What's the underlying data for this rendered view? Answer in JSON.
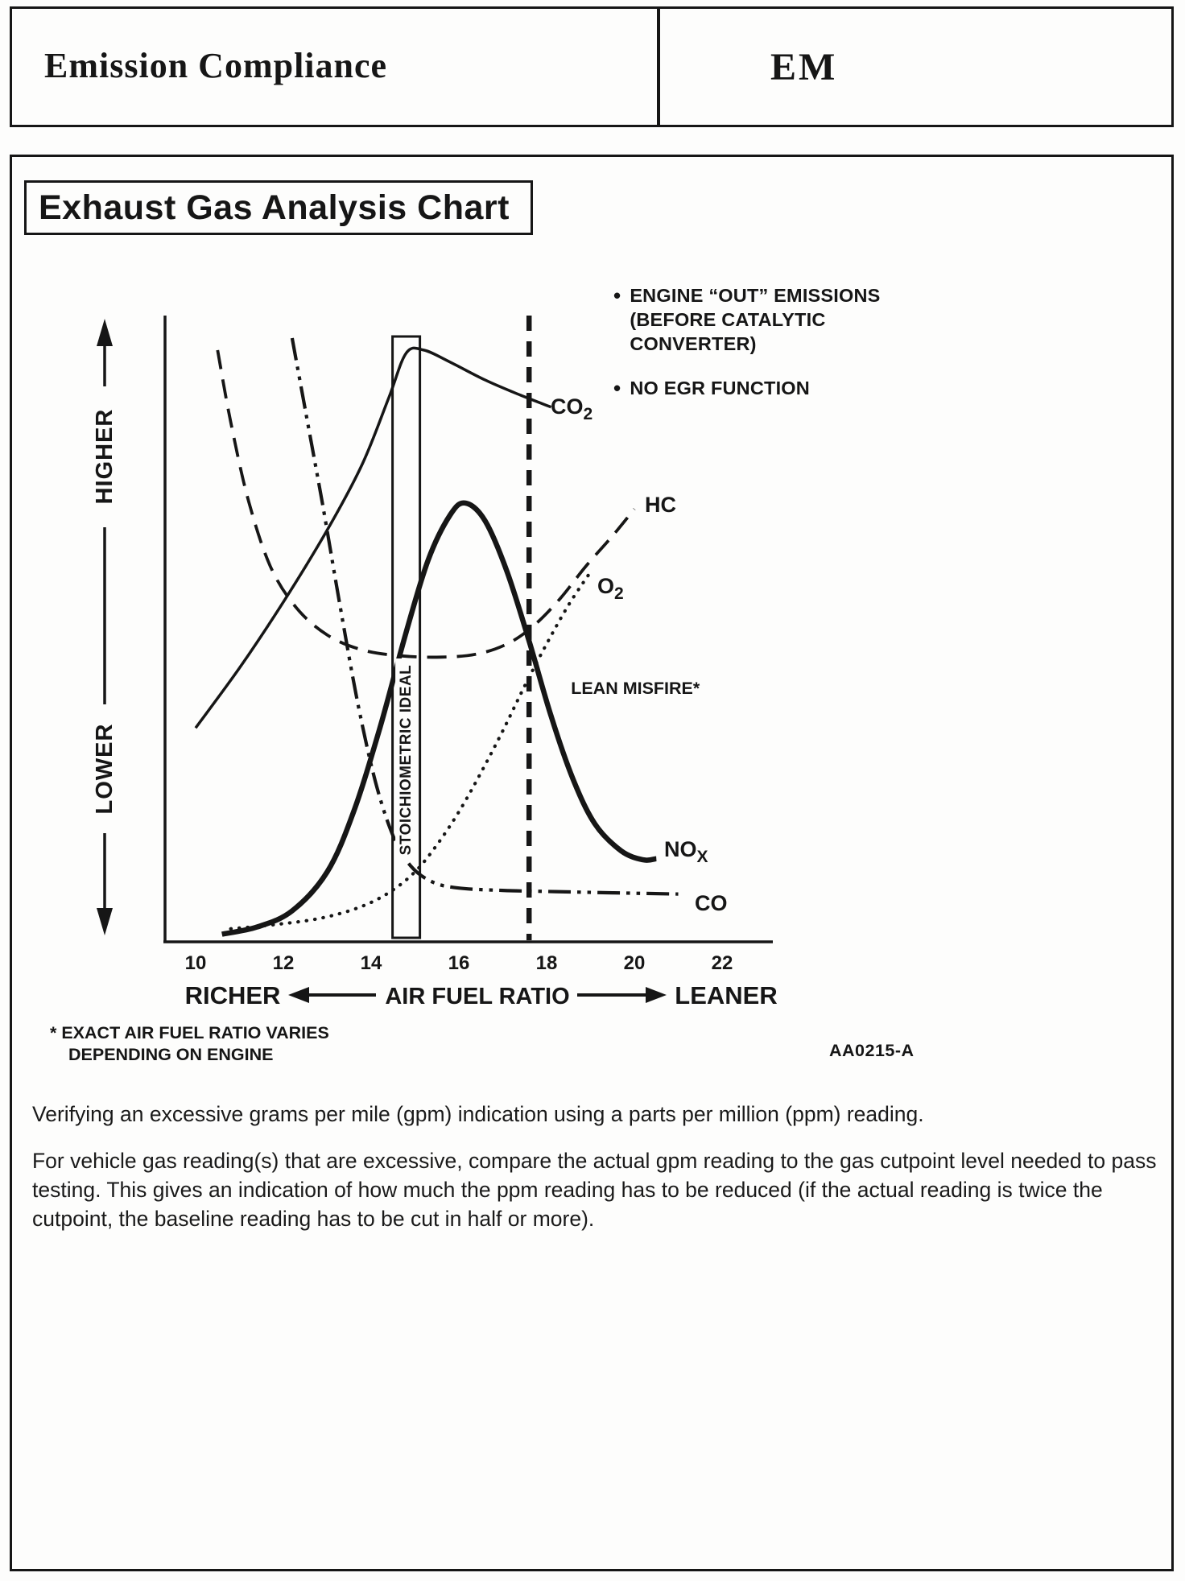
{
  "header": {
    "title": "Emission Compliance",
    "section_code": "EM"
  },
  "figure": {
    "title": "Exhaust Gas Analysis Chart",
    "notes": {
      "engine_out": {
        "line1": "ENGINE “OUT” EMISSIONS",
        "line2": "(BEFORE CATALYTIC",
        "line3": "CONVERTER)"
      },
      "no_egr": "NO EGR FUNCTION"
    },
    "footnote": {
      "line1": "* EXACT AIR FUEL RATIO VARIES",
      "line2": "DEPENDING ON ENGINE"
    },
    "reference_code": "AA0215-A"
  },
  "chart_data": {
    "type": "line",
    "title": "Exhaust Gas Analysis Chart",
    "xlabel": "AIR FUEL RATIO",
    "x_axis_end_labels": {
      "left": "RICHER",
      "right": "LEANER"
    },
    "y_axis_labels": {
      "top": "HIGHER",
      "bottom": "LOWER"
    },
    "x_ticks": [
      10,
      12,
      14,
      16,
      18,
      20,
      22
    ],
    "xlim": [
      9.3,
      23.1
    ],
    "ylim": [
      0,
      100
    ],
    "y_units": "relative exhaust gas concentration (unlabeled axis, HIGHER to LOWER)",
    "grid": false,
    "legend_position": "inline-labels",
    "series": [
      {
        "name": "CO2",
        "label_main": "CO",
        "label_sub": "2",
        "style": "solid",
        "x": [
          10.0,
          11.0,
          12.0,
          13.0,
          13.8,
          14.4,
          14.8,
          15.2,
          15.8,
          16.6,
          17.4,
          18.1
        ],
        "y": [
          35,
          45,
          56,
          68,
          79,
          90,
          97.5,
          98,
          96,
          93,
          90.5,
          88.5
        ]
      },
      {
        "name": "HC",
        "label": "HC",
        "style": "dashed",
        "x": [
          10.5,
          10.8,
          11.2,
          11.7,
          12.3,
          13.0,
          13.8,
          14.7,
          15.6,
          16.4,
          17.1,
          17.7,
          18.3,
          18.9,
          19.5,
          20.0
        ],
        "y": [
          98,
          86,
          73,
          62,
          55,
          50.5,
          48,
          47,
          46.8,
          47.3,
          49,
          52,
          56.5,
          62,
          67,
          71.5
        ]
      },
      {
        "name": "O2",
        "label_main": "O",
        "label_sub": "2",
        "style": "dotted",
        "x": [
          10.8,
          11.8,
          12.8,
          13.7,
          14.4,
          15.0,
          15.5,
          16.0,
          16.5,
          17.0,
          17.5,
          18.0,
          18.5,
          19.0
        ],
        "y": [
          1.5,
          2.2,
          3.2,
          5,
          7.5,
          11,
          15.5,
          21,
          27.5,
          34.5,
          42,
          49,
          55.5,
          61
        ]
      },
      {
        "name": "NOx",
        "label_main": "NO",
        "label_sub": "X",
        "style": "solid-thick",
        "x": [
          10.6,
          11.4,
          12.2,
          13.0,
          13.6,
          14.2,
          14.8,
          15.3,
          15.8,
          16.15,
          16.6,
          17.1,
          17.6,
          18.1,
          18.6,
          19.1,
          19.7,
          20.2,
          20.5
        ],
        "y": [
          0.6,
          1.8,
          4.5,
          11,
          21,
          35,
          51,
          63,
          70.5,
          72.5,
          69.5,
          61,
          49.5,
          37,
          26.5,
          19,
          14.5,
          13,
          13.2
        ]
      },
      {
        "name": "CO",
        "label": "CO",
        "style": "dash-dot-dot",
        "x": [
          12.2,
          12.5,
          12.9,
          13.3,
          13.7,
          14.1,
          14.5,
          14.9,
          15.4,
          16.0,
          17.0,
          18.2,
          19.5,
          21.0
        ],
        "y": [
          100,
          88,
          72,
          55,
          39,
          26,
          17,
          12,
          9.3,
          8.3,
          7.9,
          7.7,
          7.5,
          7.3
        ]
      }
    ],
    "markers": [
      {
        "name": "STOICHIOMETRIC IDEAL",
        "type": "band",
        "x": 14.8
      },
      {
        "name": "LEAN MISFIRE*",
        "type": "dashed-vline",
        "x": 17.6
      }
    ]
  },
  "body": {
    "line1": "Verifying an excessive grams per mile (gpm) indication using a parts per million (ppm) reading.",
    "paragraph": "For vehicle gas reading(s) that are excessive, compare the actual gpm reading to the gas cutpoint level needed to pass testing. This gives an indication of how much the ppm reading has to be reduced (if the actual reading is twice the cutpoint, the baseline reading has to be cut in half or more)."
  }
}
